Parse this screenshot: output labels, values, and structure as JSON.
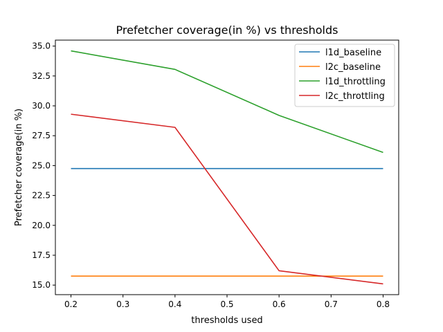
{
  "chart_data": {
    "type": "line",
    "title": "Prefetcher coverage(in %) vs thresholds",
    "xlabel": "thresholds used",
    "ylabel": "Prefetcher coverage(in %)",
    "x": [
      0.2,
      0.4,
      0.6,
      0.8
    ],
    "xlim": [
      0.17,
      0.83
    ],
    "ylim": [
      14.2,
      35.5
    ],
    "xticks": [
      "0.2",
      "0.3",
      "0.4",
      "0.5",
      "0.6",
      "0.7",
      "0.8"
    ],
    "yticks": [
      "15.0",
      "17.5",
      "20.0",
      "22.5",
      "25.0",
      "27.5",
      "30.0",
      "32.5",
      "35.0"
    ],
    "grid": false,
    "legend_position": "top-right",
    "series": [
      {
        "name": "l1d_baseline",
        "color": "#1f77b4",
        "values": [
          24.75,
          24.75,
          24.75,
          24.75
        ]
      },
      {
        "name": "l2c_baseline",
        "color": "#ff7f0e",
        "values": [
          15.75,
          15.75,
          15.75,
          15.75
        ]
      },
      {
        "name": "l1d_throttling",
        "color": "#2ca02c",
        "values": [
          34.6,
          33.05,
          29.2,
          26.1
        ]
      },
      {
        "name": "l2c_throttling",
        "color": "#d62728",
        "values": [
          29.3,
          28.2,
          16.2,
          15.1
        ]
      }
    ]
  }
}
